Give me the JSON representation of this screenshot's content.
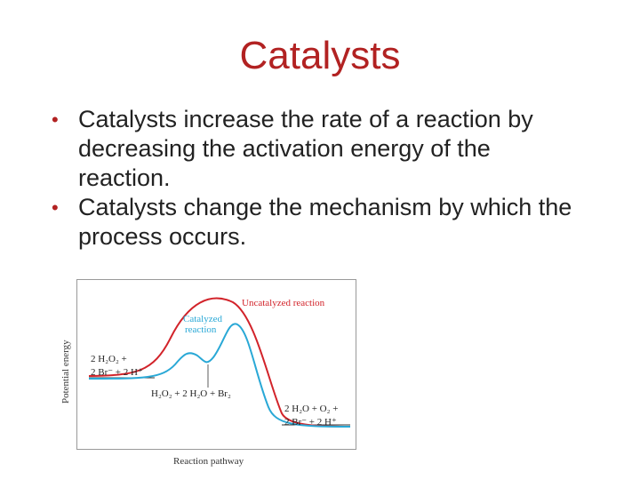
{
  "slide": {
    "title": "Catalysts",
    "bullets": [
      "Catalysts increase the rate of a reaction by decreasing the activation energy of the reaction.",
      "Catalysts change the mechanism by which the process occurs."
    ]
  },
  "diagram": {
    "y_axis_label": "Potential energy",
    "x_axis_label": "Reaction pathway",
    "uncatalyzed_label": "Uncatalyzed reaction",
    "catalyzed_label_line1": "Catalyzed",
    "catalyzed_label_line2": "reaction",
    "reactants_line1": "2 H₂O₂ +",
    "reactants_line2": "2 Br⁻ + 2 H⁺",
    "intermediate": "H₂O₂ + 2 H₂O + Br₂",
    "products_line1": "2 H₂O + O₂ +",
    "products_line2": "2 Br⁻ + 2 H⁺",
    "colors": {
      "uncatalyzed": "#d2232a",
      "catalyzed": "#29a8d6",
      "title": "#b22222"
    }
  }
}
